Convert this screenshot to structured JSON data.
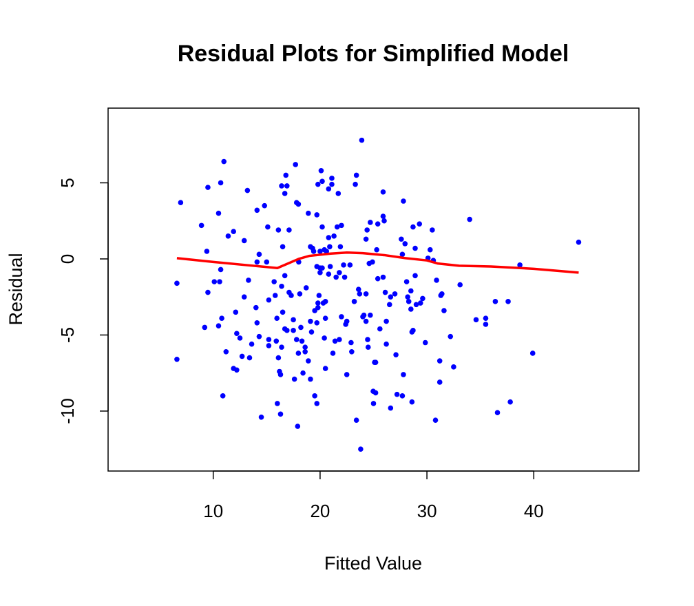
{
  "chart_data": {
    "type": "scatter",
    "title": "Residual Plots for Simplified Model",
    "xlabel": "Fitted Value",
    "ylabel": "Residual",
    "xlim": [
      0.16,
      49.84
    ],
    "ylim": [
      -13.94,
      9.91
    ],
    "xticks": [
      10,
      20,
      30,
      40
    ],
    "yticks": [
      -10,
      -5,
      0,
      5
    ],
    "grid": false,
    "color": "#0000ff",
    "x": [
      6.95,
      6.6,
      6.6,
      9.5,
      8.9,
      9.4,
      9.5,
      9.2,
      10.5,
      10.7,
      11.0,
      10.7,
      10.6,
      10.1,
      10.8,
      10.5,
      11.2,
      10.9,
      11.4,
      11.9,
      12.1,
      11.9,
      12.2,
      12.2,
      12.5,
      12.7,
      12.9,
      13.2,
      13.3,
      12.9,
      13.4,
      13.6,
      14.1,
      14.3,
      14.1,
      14.0,
      14.1,
      14.3,
      14.5,
      14.8,
      15.0,
      15.1,
      15.2,
      15.2,
      15.2,
      15.7,
      15.8,
      15.96,
      15.9,
      16.1,
      16.1,
      16.2,
      16.0,
      16.4,
      16.5,
      16.4,
      16.5,
      16.4,
      16.3,
      16.3,
      16.7,
      16.9,
      16.8,
      16.7,
      16.7,
      16.9,
      17.1,
      17.1,
      17.3,
      17.5,
      17.5,
      17.6,
      17.7,
      17.8,
      17.97,
      17.8,
      17.97,
      17.9,
      18.0,
      18.1,
      18.2,
      18.3,
      18.4,
      18.6,
      18.6,
      18.7,
      18.9,
      18.9,
      19.1,
      19.1,
      19.2,
      19.1,
      19.3,
      19.4,
      19.5,
      19.5,
      19.7,
      19.7,
      19.7,
      19.7,
      19.8,
      19.8,
      19.8,
      19.9,
      20.0,
      20.0,
      20.0,
      20.1,
      20.2,
      20.2,
      20.2,
      20.3,
      20.4,
      20.4,
      20.5,
      20.5,
      20.5,
      20.6,
      20.8,
      20.8,
      20.8,
      20.9,
      20.95,
      21.1,
      21.1,
      21.2,
      21.3,
      21.4,
      21.5,
      21.6,
      21.7,
      21.8,
      21.8,
      21.9,
      22.0,
      22.0,
      22.2,
      22.3,
      22.4,
      22.5,
      22.5,
      22.8,
      22.9,
      22.96,
      23.2,
      23.3,
      23.4,
      23.4,
      23.6,
      23.7,
      23.8,
      23.9,
      24.0,
      24.1,
      24.3,
      24.3,
      24.4,
      24.3,
      24.45,
      24.5,
      24.7,
      24.7,
      24.6,
      24.9,
      24.97,
      25.0,
      25.1,
      25.2,
      25.2,
      25.3,
      25.4,
      25.4,
      25.6,
      25.9,
      25.9,
      26.0,
      25.9,
      26.1,
      26.2,
      26.2,
      26.5,
      26.6,
      26.6,
      27.0,
      27.1,
      27.2,
      27.6,
      27.8,
      27.7,
      27.7,
      27.8,
      27.95,
      28.1,
      28.2,
      28.3,
      28.5,
      28.5,
      28.6,
      28.7,
      28.6,
      28.7,
      28.9,
      29.0,
      28.9,
      29.3,
      29.4,
      29.6,
      29.85,
      30.1,
      30.3,
      30.5,
      30.6,
      30.8,
      30.9,
      31.3,
      31.4,
      31.2,
      31.2,
      31.6,
      32.2,
      32.5,
      33.1,
      34.0,
      34.6,
      35.5,
      35.5,
      36.4,
      36.6,
      37.6,
      37.8,
      38.7,
      39.9,
      44.2
    ],
    "values": [
      3.7,
      -1.6,
      -6.6,
      4.7,
      2.2,
      0.5,
      -2.2,
      -4.5,
      3.0,
      5.0,
      6.4,
      -0.7,
      -1.5,
      -1.5,
      -3.9,
      -4.4,
      -6.1,
      -9.0,
      1.5,
      1.8,
      -3.5,
      -7.2,
      -7.3,
      -4.9,
      -5.2,
      -6.4,
      1.2,
      4.5,
      -1.4,
      -2.5,
      -6.5,
      -5.6,
      3.2,
      0.3,
      -0.2,
      -3.2,
      -4.2,
      -5.1,
      -10.4,
      3.5,
      -0.2,
      2.1,
      -2.7,
      -5.3,
      -5.7,
      -1.5,
      -2.4,
      -3.9,
      -5.4,
      1.9,
      -6.5,
      -7.4,
      -9.5,
      4.8,
      0.8,
      -1.8,
      -3.5,
      -5.8,
      -7.6,
      -10.2,
      4.3,
      4.8,
      5.5,
      -1.1,
      -4.6,
      -4.7,
      1.9,
      -2.2,
      -2.4,
      -4.0,
      -4.7,
      -7.9,
      6.2,
      3.7,
      3.6,
      -5.3,
      -6.2,
      -11.0,
      -0.2,
      -2.3,
      -4.5,
      -5.4,
      -7.5,
      -5.8,
      -6.1,
      -1.9,
      3.0,
      -6.7,
      0.8,
      -4.1,
      -4.8,
      -7.9,
      0.7,
      0.5,
      -3.4,
      -9.0,
      -4.2,
      -9.5,
      2.9,
      -0.5,
      -2.9,
      -3.2,
      4.9,
      -2.4,
      0.5,
      -0.6,
      -0.9,
      5.8,
      5.1,
      2.1,
      -0.6,
      -2.9,
      0.6,
      -5.2,
      -3.9,
      -7.2,
      -2.8,
      0.5,
      -1.0,
      4.6,
      1.4,
      0.8,
      -0.5,
      4.9,
      5.3,
      -6.2,
      1.5,
      -5.4,
      -1.2,
      2.1,
      4.3,
      -0.9,
      -5.3,
      0.8,
      2.2,
      -3.8,
      -0.4,
      -1.2,
      -4.3,
      -4.1,
      -7.6,
      -0.4,
      -5.5,
      -6.1,
      -2.8,
      4.9,
      5.5,
      -10.6,
      -2.0,
      -2.3,
      -12.5,
      7.8,
      -3.8,
      -3.7,
      -2.3,
      1.3,
      1.9,
      -4.1,
      -5.3,
      -5.8,
      -3.7,
      2.4,
      -0.3,
      -0.2,
      -8.7,
      -9.5,
      -6.8,
      -6.8,
      -8.8,
      0.6,
      2.3,
      -1.3,
      -4.6,
      4.4,
      2.8,
      2.5,
      -1.2,
      -2.2,
      -5.6,
      -4.1,
      -3.0,
      -2.5,
      -9.8,
      -2.3,
      -6.3,
      -8.9,
      1.3,
      3.8,
      -9.0,
      0.3,
      -7.6,
      1.0,
      -1.5,
      -2.5,
      -2.8,
      -2.1,
      -3.3,
      -4.8,
      -4.7,
      -9.4,
      2.1,
      0.7,
      -3.0,
      -1.1,
      2.3,
      -2.9,
      -2.6,
      -5.5,
      0.05,
      0.6,
      1.9,
      -0.1,
      -10.6,
      -1.4,
      -2.4,
      -2.3,
      -6.7,
      -8.1,
      -3.4,
      -5.1,
      -7.1,
      -1.7,
      2.6,
      -4.0,
      -3.9,
      -4.3,
      -2.8,
      -10.1,
      -2.8,
      -9.4,
      -0.4,
      -6.2,
      1.1
    ],
    "smooth": {
      "color": "#ff0000",
      "x": [
        6.6,
        10,
        13,
        16,
        17,
        18,
        19,
        21,
        22.5,
        24,
        26,
        28,
        30,
        31,
        33,
        36,
        40,
        44.2
      ],
      "values": [
        0.05,
        -0.2,
        -0.4,
        -0.6,
        -0.3,
        0.0,
        0.2,
        0.35,
        0.42,
        0.38,
        0.25,
        0.05,
        -0.1,
        -0.3,
        -0.45,
        -0.5,
        -0.65,
        -0.9
      ]
    }
  }
}
